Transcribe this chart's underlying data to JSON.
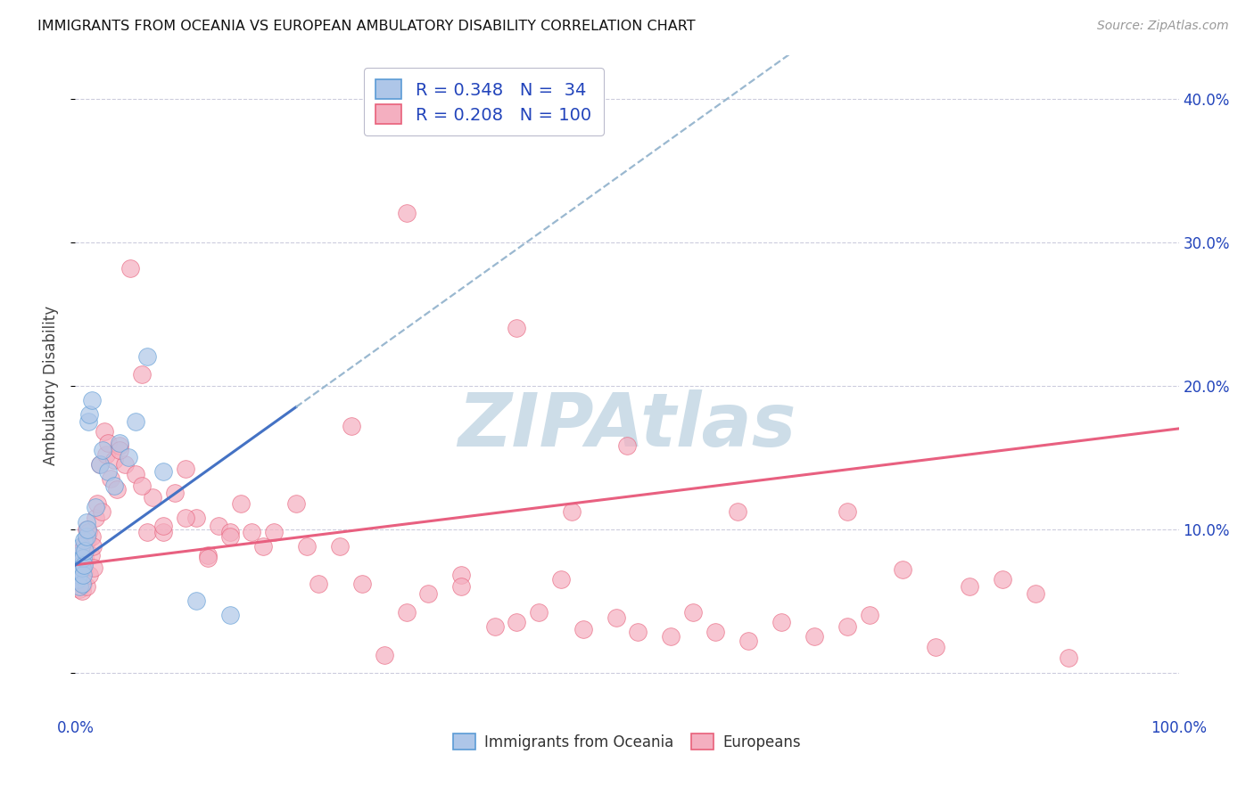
{
  "title": "IMMIGRANTS FROM OCEANIA VS EUROPEAN AMBULATORY DISABILITY CORRELATION CHART",
  "source": "Source: ZipAtlas.com",
  "ylabel": "Ambulatory Disability",
  "xlim": [
    0,
    1.0
  ],
  "ylim": [
    -0.03,
    0.43
  ],
  "x_ticks": [
    0,
    0.1,
    0.2,
    0.3,
    0.4,
    0.5,
    0.6,
    0.7,
    0.8,
    0.9,
    1.0
  ],
  "x_tick_labels": [
    "0.0%",
    "",
    "",
    "",
    "",
    "",
    "",
    "",
    "",
    "",
    "100.0%"
  ],
  "y_ticks": [
    0.0,
    0.1,
    0.2,
    0.3,
    0.4
  ],
  "y_tick_labels": [
    "",
    "10.0%",
    "20.0%",
    "30.0%",
    "40.0%"
  ],
  "oceania_fill": "#aec6e8",
  "oceania_edge": "#5b9bd5",
  "europeans_fill": "#f4afc0",
  "europeans_edge": "#e8607a",
  "oceania_line_color": "#4472c4",
  "europeans_line_color": "#e86080",
  "dashed_line_color": "#9ab8d0",
  "legend_text_color": "#2244bb",
  "background_color": "#ffffff",
  "grid_color": "#ccccdd",
  "watermark_color": "#cddde8",
  "R_oceania": 0.348,
  "N_oceania": 34,
  "R_europeans": 0.208,
  "N_europeans": 100,
  "oceania_x": [
    0.001,
    0.002,
    0.002,
    0.003,
    0.003,
    0.004,
    0.004,
    0.005,
    0.005,
    0.006,
    0.006,
    0.007,
    0.007,
    0.008,
    0.008,
    0.009,
    0.01,
    0.01,
    0.011,
    0.012,
    0.013,
    0.015,
    0.018,
    0.022,
    0.025,
    0.03,
    0.035,
    0.04,
    0.048,
    0.055,
    0.065,
    0.08,
    0.11,
    0.14
  ],
  "oceania_y": [
    0.07,
    0.065,
    0.072,
    0.068,
    0.078,
    0.06,
    0.082,
    0.075,
    0.088,
    0.062,
    0.073,
    0.068,
    0.08,
    0.092,
    0.075,
    0.085,
    0.095,
    0.105,
    0.1,
    0.175,
    0.18,
    0.19,
    0.115,
    0.145,
    0.155,
    0.14,
    0.13,
    0.16,
    0.15,
    0.175,
    0.22,
    0.14,
    0.05,
    0.04
  ],
  "europeans_x": [
    0.001,
    0.002,
    0.002,
    0.003,
    0.003,
    0.004,
    0.004,
    0.005,
    0.005,
    0.006,
    0.006,
    0.007,
    0.007,
    0.008,
    0.008,
    0.009,
    0.009,
    0.01,
    0.01,
    0.011,
    0.012,
    0.013,
    0.014,
    0.015,
    0.016,
    0.017,
    0.018,
    0.02,
    0.022,
    0.024,
    0.026,
    0.028,
    0.03,
    0.032,
    0.035,
    0.038,
    0.04,
    0.045,
    0.05,
    0.055,
    0.06,
    0.065,
    0.07,
    0.08,
    0.09,
    0.1,
    0.11,
    0.12,
    0.13,
    0.14,
    0.15,
    0.16,
    0.17,
    0.18,
    0.2,
    0.21,
    0.22,
    0.24,
    0.26,
    0.28,
    0.3,
    0.32,
    0.35,
    0.38,
    0.4,
    0.42,
    0.44,
    0.46,
    0.49,
    0.51,
    0.54,
    0.56,
    0.58,
    0.61,
    0.64,
    0.67,
    0.7,
    0.72,
    0.75,
    0.78,
    0.81,
    0.84,
    0.87,
    0.9,
    0.04,
    0.06,
    0.08,
    0.1,
    0.12,
    0.14,
    0.3,
    0.4,
    0.45,
    0.5,
    0.6,
    0.7,
    0.35,
    0.25
  ],
  "europeans_y": [
    0.068,
    0.063,
    0.08,
    0.06,
    0.072,
    0.058,
    0.077,
    0.07,
    0.085,
    0.057,
    0.068,
    0.062,
    0.075,
    0.088,
    0.07,
    0.08,
    0.09,
    0.06,
    0.1,
    0.092,
    0.098,
    0.068,
    0.082,
    0.095,
    0.088,
    0.073,
    0.108,
    0.118,
    0.145,
    0.112,
    0.168,
    0.152,
    0.16,
    0.135,
    0.148,
    0.128,
    0.158,
    0.145,
    0.282,
    0.138,
    0.208,
    0.098,
    0.122,
    0.098,
    0.125,
    0.142,
    0.108,
    0.082,
    0.102,
    0.098,
    0.118,
    0.098,
    0.088,
    0.098,
    0.118,
    0.088,
    0.062,
    0.088,
    0.062,
    0.012,
    0.042,
    0.055,
    0.068,
    0.032,
    0.035,
    0.042,
    0.065,
    0.03,
    0.038,
    0.028,
    0.025,
    0.042,
    0.028,
    0.022,
    0.035,
    0.025,
    0.032,
    0.04,
    0.072,
    0.018,
    0.06,
    0.065,
    0.055,
    0.01,
    0.155,
    0.13,
    0.102,
    0.108,
    0.08,
    0.095,
    0.32,
    0.24,
    0.112,
    0.158,
    0.112,
    0.112,
    0.06,
    0.172
  ]
}
